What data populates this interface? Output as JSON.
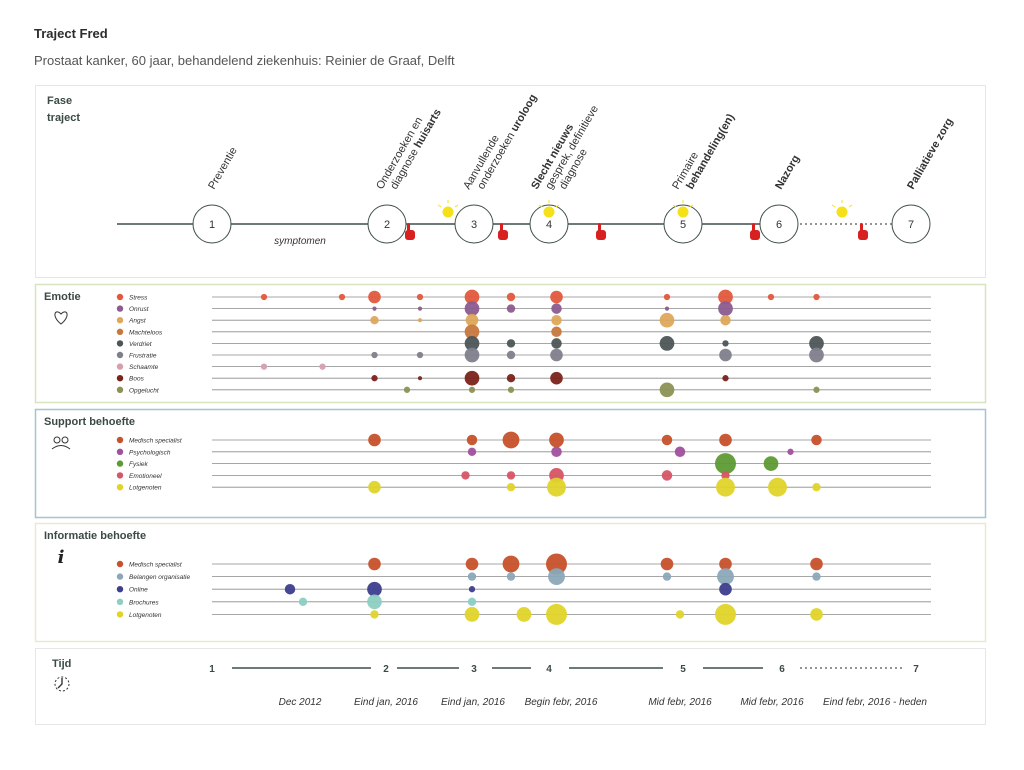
{
  "header": {
    "title": "Traject Fred",
    "subtitle": "Prostaat kanker, 60 jaar, behandelend ziekenhuis: Reinier de Graaf, Delft"
  },
  "colors": {
    "stress": "#e2583c",
    "onrust": "#8c5b8f",
    "angst": "#dea75a",
    "machteloos": "#c7783e",
    "verdriet": "#4d5557",
    "frustratie": "#7f7f8c",
    "schaamte": "#d4a0ae",
    "boos": "#7b231a",
    "opgelucht": "#8c9155",
    "medisch": "#c6512a",
    "psycho": "#a1509e",
    "fysiek": "#5e9a34",
    "emotioneel": "#d65566",
    "lotgenoten": "#e0d42a",
    "belangen": "#8ba8b8",
    "online": "#3d3e8e",
    "brochures": "#8ccfc3",
    "bulb": "#f4e11a",
    "hand": "#d92021",
    "panel_emotie_border": "#d8e4c0",
    "panel_support_border": "#a6c4d0",
    "panel_info_border": "#ebe8d0"
  },
  "chart_data": {
    "type": "bubble-timeline",
    "phase_panel": {
      "label_line1": "Fase",
      "label_line2": "traject",
      "phases": [
        {
          "num": "1",
          "lines": [
            {
              "text": "Preventie",
              "bold": false
            }
          ]
        },
        {
          "num": "2",
          "lines": [
            {
              "text": "Onderzoeken en",
              "bold": false
            },
            {
              "text": "diagnose ",
              "bold": false,
              "bold_tail": "huisarts"
            }
          ]
        },
        {
          "num": "3",
          "lines": [
            {
              "text": "Aanvullende",
              "bold": false
            },
            {
              "text": "onderzoeken ",
              "bold": false,
              "bold_tail": "uroloog"
            }
          ]
        },
        {
          "num": "4",
          "lines": [
            {
              "text": "Slecht nieuws",
              "bold": true
            },
            {
              "text": "gesprek, definitieve",
              "bold": false
            },
            {
              "text": "diagnose",
              "bold": false
            }
          ]
        },
        {
          "num": "5",
          "lines": [
            {
              "text": "Primaire",
              "bold": false
            },
            {
              "text": "behandeling(en)",
              "bold": true
            }
          ]
        },
        {
          "num": "6",
          "lines": [
            {
              "text": "Nazorg",
              "bold": true
            }
          ]
        },
        {
          "num": "7",
          "lines": [
            {
              "text": "Palliatieve zorg",
              "bold": true
            }
          ]
        }
      ],
      "symptom_label": "symptomen",
      "bulb_icon": "lightbulb-icon",
      "hand_icon": "pointing-hand-icon"
    },
    "sections": [
      {
        "key": "emotie",
        "title": "Emotie",
        "icon": "heart-icon",
        "rows": [
          {
            "label": "Stress",
            "color_key": "stress",
            "points": [
              [
                1.8,
                3
              ],
              [
                3,
                3
              ],
              [
                3.5,
                6
              ],
              [
                4.2,
                3
              ],
              [
                5,
                7
              ],
              [
                5.6,
                4
              ],
              [
                6.3,
                6
              ],
              [
                8,
                3
              ],
              [
                8.9,
                7
              ],
              [
                9.6,
                3
              ],
              [
                10.3,
                3
              ]
            ]
          },
          {
            "label": "Onrust",
            "color_key": "onrust",
            "points": [
              [
                3.5,
                2
              ],
              [
                4.2,
                2
              ],
              [
                5,
                7
              ],
              [
                5.6,
                4
              ],
              [
                6.3,
                5
              ],
              [
                8,
                2
              ],
              [
                8.9,
                7
              ]
            ]
          },
          {
            "label": "Angst",
            "color_key": "angst",
            "points": [
              [
                3.5,
                4
              ],
              [
                4.2,
                2
              ],
              [
                5,
                6
              ],
              [
                6.3,
                5
              ],
              [
                8,
                7
              ],
              [
                8.9,
                5
              ]
            ]
          },
          {
            "label": "Machteloos",
            "color_key": "machteloos",
            "points": [
              [
                5,
                7
              ],
              [
                6.3,
                5
              ]
            ]
          },
          {
            "label": "Verdriet",
            "color_key": "verdriet",
            "points": [
              [
                5,
                7
              ],
              [
                5.6,
                4
              ],
              [
                6.3,
                5
              ],
              [
                8,
                7
              ],
              [
                8.9,
                3
              ],
              [
                10.3,
                7
              ]
            ]
          },
          {
            "label": "Frustratie",
            "color_key": "frustratie",
            "points": [
              [
                3.5,
                3
              ],
              [
                4.2,
                3
              ],
              [
                5,
                7
              ],
              [
                5.6,
                4
              ],
              [
                6.3,
                6
              ],
              [
                8.9,
                6
              ],
              [
                10.3,
                7
              ]
            ]
          },
          {
            "label": "Schaamte",
            "color_key": "schaamte",
            "points": [
              [
                1.8,
                3
              ],
              [
                2.7,
                3
              ]
            ]
          },
          {
            "label": "Boos",
            "color_key": "boos",
            "points": [
              [
                3.5,
                3
              ],
              [
                4.2,
                2
              ],
              [
                5,
                7
              ],
              [
                5.6,
                4
              ],
              [
                6.3,
                6
              ],
              [
                8.9,
                3
              ]
            ]
          },
          {
            "label": "Opgelucht",
            "color_key": "opgelucht",
            "points": [
              [
                4,
                3
              ],
              [
                5,
                3
              ],
              [
                5.6,
                3
              ],
              [
                8,
                7
              ],
              [
                10.3,
                3
              ]
            ]
          }
        ]
      },
      {
        "key": "support",
        "title": "Support behoefte",
        "icon": "people-icon",
        "rows": [
          {
            "label": "Medisch specialist",
            "color_key": "medisch",
            "points": [
              [
                3.5,
                6
              ],
              [
                5,
                5
              ],
              [
                5.6,
                8
              ],
              [
                6.3,
                7
              ],
              [
                8,
                5
              ],
              [
                8.9,
                6
              ],
              [
                10.3,
                5
              ]
            ]
          },
          {
            "label": "Psychologisch",
            "color_key": "psycho",
            "points": [
              [
                5,
                4
              ],
              [
                6.3,
                5
              ],
              [
                8.2,
                5
              ],
              [
                9.9,
                3
              ]
            ]
          },
          {
            "label": "Fysiek",
            "color_key": "fysiek",
            "points": [
              [
                8.9,
                10
              ],
              [
                9.6,
                7
              ]
            ]
          },
          {
            "label": "Emotioneel",
            "color_key": "emotioneel",
            "points": [
              [
                4.9,
                4
              ],
              [
                5.6,
                4
              ],
              [
                6.3,
                7
              ],
              [
                8,
                5
              ],
              [
                8.9,
                4
              ]
            ]
          },
          {
            "label": "Lotgenoten",
            "color_key": "lotgenoten",
            "points": [
              [
                3.5,
                6
              ],
              [
                5.6,
                4
              ],
              [
                6.3,
                9
              ],
              [
                8.9,
                9
              ],
              [
                9.7,
                9
              ],
              [
                10.3,
                4
              ]
            ]
          }
        ]
      },
      {
        "key": "informatie",
        "title": "Informatie behoefte",
        "icon": "info-icon",
        "rows": [
          {
            "label": "Medisch specialist",
            "color_key": "medisch",
            "points": [
              [
                3.5,
                6
              ],
              [
                5,
                6
              ],
              [
                5.6,
                8
              ],
              [
                6.3,
                10
              ],
              [
                8,
                6
              ],
              [
                8.9,
                6
              ],
              [
                10.3,
                6
              ]
            ]
          },
          {
            "label": "Belangen organisatie",
            "color_key": "belangen",
            "points": [
              [
                5,
                4
              ],
              [
                5.6,
                4
              ],
              [
                6.3,
                8
              ],
              [
                8,
                4
              ],
              [
                8.9,
                8
              ],
              [
                10.3,
                4
              ]
            ]
          },
          {
            "label": "Online",
            "color_key": "online",
            "points": [
              [
                2.2,
                5
              ],
              [
                3.5,
                7
              ],
              [
                5,
                3
              ],
              [
                8.9,
                6
              ]
            ]
          },
          {
            "label": "Brochures",
            "color_key": "brochures",
            "points": [
              [
                2.4,
                4
              ],
              [
                3.5,
                7
              ],
              [
                5,
                4
              ]
            ]
          },
          {
            "label": "Lotgenoten",
            "color_key": "lotgenoten",
            "points": [
              [
                3.5,
                4
              ],
              [
                5,
                7
              ],
              [
                5.8,
                7
              ],
              [
                6.3,
                10
              ],
              [
                8.2,
                4
              ],
              [
                8.9,
                10
              ],
              [
                10.3,
                6
              ]
            ]
          }
        ]
      }
    ],
    "time_panel": {
      "title": "Tijd",
      "icon": "clock-icon",
      "ticks": [
        "1",
        "2",
        "3",
        "4",
        "5",
        "6",
        "7"
      ],
      "dates": [
        "Dec 2012",
        "Eind jan, 2016",
        "Eind jan, 2016",
        "Begin febr, 2016",
        "Mid febr, 2016",
        "Mid febr, 2016",
        "Eind febr, 2016 - heden"
      ]
    }
  }
}
